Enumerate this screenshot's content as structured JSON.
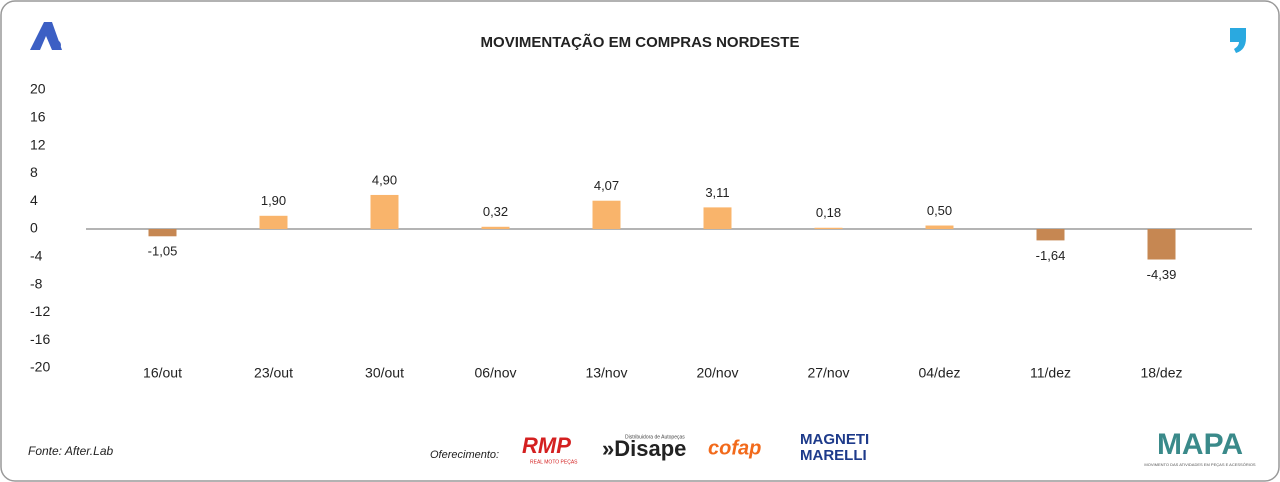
{
  "chart_data": {
    "type": "bar",
    "title": "MOVIMENTAÇÃO EM COMPRAS NORDESTE",
    "categories": [
      "16/out",
      "23/out",
      "30/out",
      "06/nov",
      "13/nov",
      "20/nov",
      "27/nov",
      "04/dez",
      "11/dez",
      "18/dez"
    ],
    "values": [
      -1.05,
      1.9,
      4.9,
      0.32,
      4.07,
      3.11,
      0.18,
      0.5,
      -1.64,
      -4.39
    ],
    "value_labels": [
      "-1,05",
      "1,90",
      "4,90",
      "0,32",
      "4,07",
      "3,11",
      "0,18",
      "0,50",
      "-1,64",
      "-4,39"
    ],
    "colors": [
      "#c68752",
      "#f9b46b",
      "#f9b46b",
      "#f9b46b",
      "#f9b46b",
      "#f9b46b",
      "#f9b46b",
      "#f9b46b",
      "#c68752",
      "#c68752"
    ],
    "ylim": [
      -20,
      20
    ],
    "yticks": [
      -20,
      -16,
      -12,
      -8,
      -4,
      0,
      4,
      8,
      12,
      16,
      20
    ],
    "grid": false
  },
  "footer": {
    "source": "Fonte: After.Lab",
    "sponsor_label": "Oferecimento:",
    "sponsors": [
      "RMP",
      "REAL MOTO PEÇAS",
      "»Disape",
      "Distribuidora de Autopeças",
      "cofap",
      "MAGNETI",
      "MARELLI"
    ],
    "brand": "MAPA",
    "brand_tagline": "MOVIMENTO DAS ATIVIDADES EM PEÇAS E ACESSÓRIOS"
  }
}
